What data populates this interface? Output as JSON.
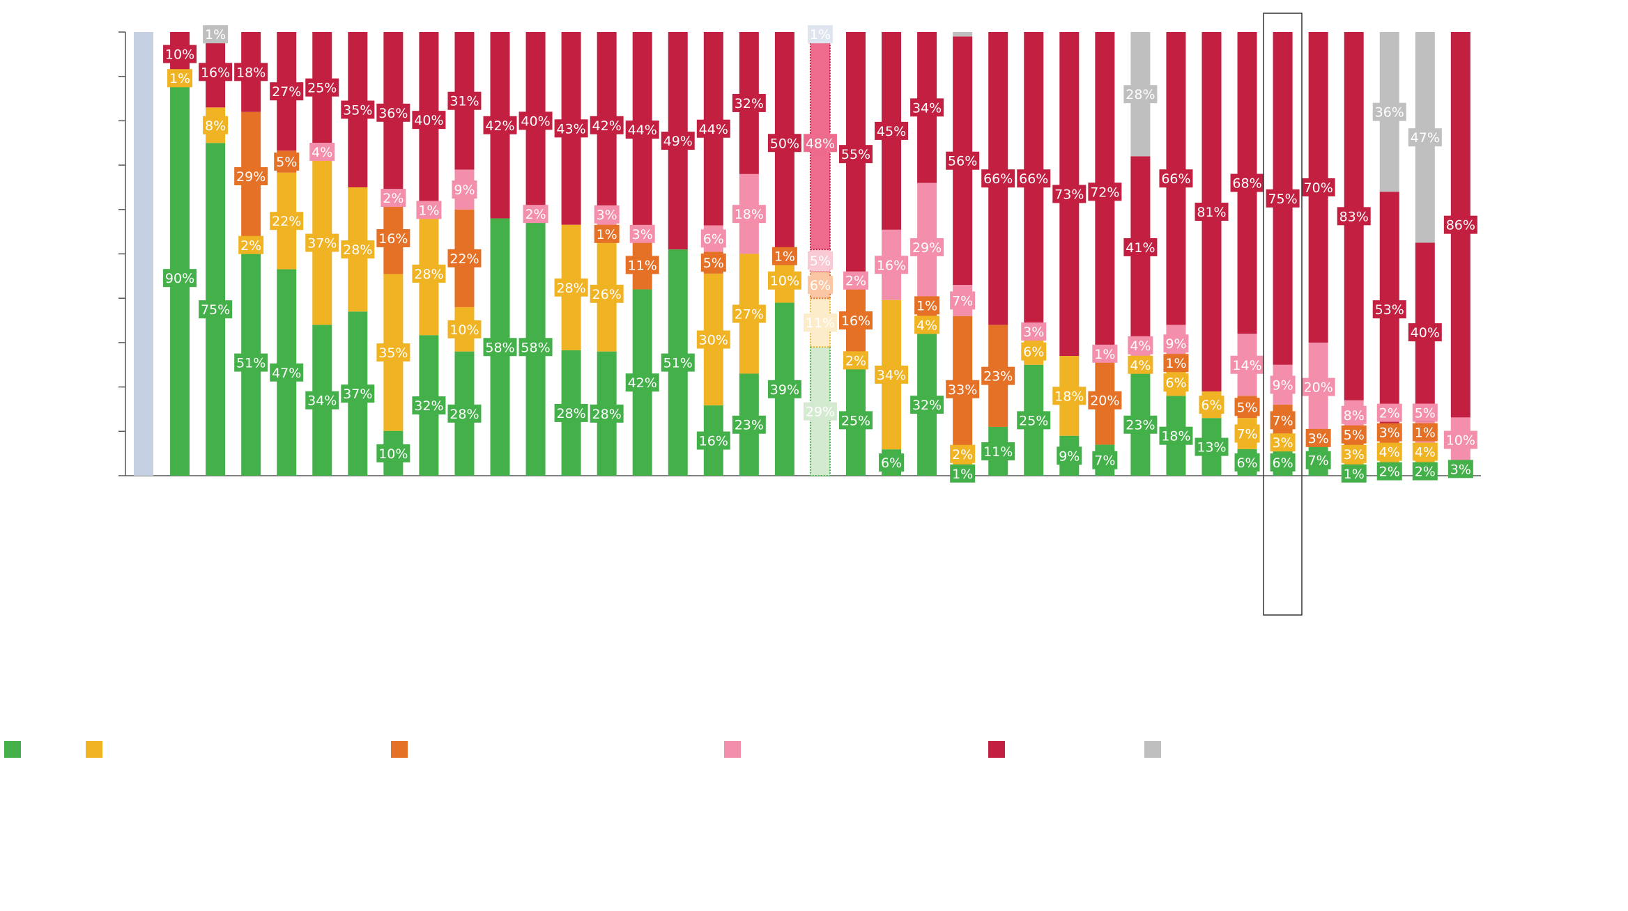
{
  "chart_data": {
    "type": "bar",
    "stacked": true,
    "normalized_percent": true,
    "title": "",
    "xlabel": "",
    "ylabel": "",
    "ylim": [
      0,
      100
    ],
    "y_ticks": [
      0,
      10,
      20,
      30,
      40,
      50,
      60,
      70,
      80,
      90,
      100
    ],
    "legend_placement": "bottom",
    "series": [
      {
        "name": "green",
        "color": "#44b04a",
        "faded_color": "#d4ead0"
      },
      {
        "name": "yellow",
        "color": "#efb324",
        "faded_color": "#fcecc9"
      },
      {
        "name": "orange",
        "color": "#e57126",
        "faded_color": "#fbc6a3"
      },
      {
        "name": "pink",
        "color": "#f48fab",
        "faded_color": "#f9c9d4"
      },
      {
        "name": "red",
        "color": "#c21f41",
        "faded_color": "#ee6b8d"
      },
      {
        "name": "gray",
        "color": "#bfbfbf",
        "faded_color": "#dfe5ee"
      }
    ],
    "placeholder_color": "#c5d0e3",
    "highlighted_bar": 32,
    "faded_bar": 19,
    "bars": [
      {
        "placeholder": true,
        "values": []
      },
      {
        "values": [
          90,
          1,
          null,
          null,
          10,
          null
        ]
      },
      {
        "values": [
          75,
          8,
          null,
          null,
          16,
          1
        ]
      },
      {
        "values": [
          51,
          2,
          29,
          null,
          18,
          null
        ]
      },
      {
        "values": [
          47,
          22,
          5,
          null,
          27,
          null
        ]
      },
      {
        "values": [
          34,
          37,
          null,
          4,
          25,
          null
        ]
      },
      {
        "values": [
          37,
          28,
          null,
          null,
          35,
          null
        ]
      },
      {
        "values": [
          10,
          35,
          16,
          2,
          36,
          null
        ]
      },
      {
        "values": [
          32,
          28,
          null,
          1,
          40,
          null
        ]
      },
      {
        "values": [
          28,
          10,
          22,
          9,
          31,
          null
        ]
      },
      {
        "values": [
          58,
          null,
          null,
          null,
          42,
          null
        ]
      },
      {
        "values": [
          58,
          null,
          null,
          2,
          40,
          null
        ]
      },
      {
        "values": [
          28,
          28,
          null,
          null,
          43,
          null
        ]
      },
      {
        "values": [
          28,
          26,
          1,
          3,
          42,
          null
        ]
      },
      {
        "values": [
          42,
          null,
          11,
          3,
          44,
          null
        ]
      },
      {
        "values": [
          51,
          null,
          null,
          null,
          49,
          null
        ]
      },
      {
        "values": [
          16,
          30,
          5,
          6,
          44,
          null
        ]
      },
      {
        "values": [
          23,
          27,
          null,
          18,
          32,
          null
        ]
      },
      {
        "values": [
          39,
          10,
          1,
          null,
          50,
          null
        ]
      },
      {
        "values": [
          29,
          11,
          6,
          5,
          48,
          1
        ]
      },
      {
        "values": [
          25,
          2,
          16,
          2,
          55,
          null
        ]
      },
      {
        "values": [
          6,
          34,
          null,
          16,
          45,
          null
        ]
      },
      {
        "values": [
          32,
          4,
          1,
          29,
          34,
          null
        ]
      },
      {
        "values": [
          1,
          2,
          33,
          7,
          56,
          1
        ],
        "unlabeled": [
          5
        ]
      },
      {
        "values": [
          11,
          null,
          23,
          null,
          66,
          null
        ]
      },
      {
        "values": [
          25,
          6,
          null,
          3,
          66,
          null
        ]
      },
      {
        "values": [
          9,
          18,
          null,
          null,
          73,
          null
        ]
      },
      {
        "values": [
          7,
          null,
          20,
          1,
          72,
          null
        ]
      },
      {
        "values": [
          23,
          4,
          null,
          4,
          41,
          28
        ]
      },
      {
        "values": [
          18,
          6,
          1,
          9,
          66,
          null
        ]
      },
      {
        "values": [
          13,
          6,
          null,
          null,
          81,
          null
        ]
      },
      {
        "values": [
          6,
          7,
          5,
          14,
          68,
          null
        ]
      },
      {
        "values": [
          6,
          3,
          7,
          9,
          75,
          null
        ]
      },
      {
        "values": [
          7,
          null,
          3,
          20,
          70,
          null
        ]
      },
      {
        "values": [
          1,
          3,
          5,
          8,
          83,
          null
        ]
      },
      {
        "values": [
          2,
          4,
          3,
          2,
          53,
          36
        ]
      },
      {
        "values": [
          2,
          4,
          1,
          5,
          40,
          47
        ]
      },
      {
        "values": [
          3,
          null,
          null,
          10,
          86,
          null
        ]
      }
    ]
  }
}
